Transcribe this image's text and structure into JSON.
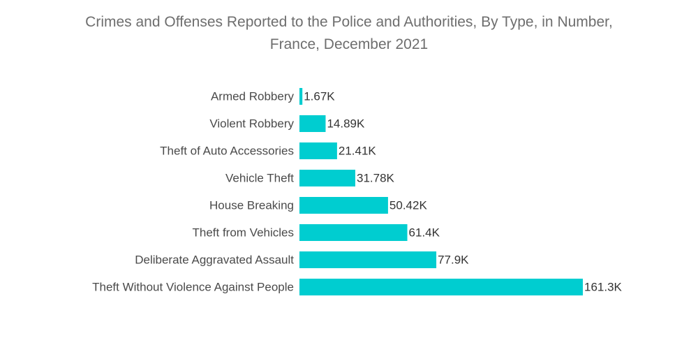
{
  "chart_data": {
    "type": "bar",
    "orientation": "horizontal",
    "title_lines": [
      "Crimes and Offenses Reported to the Police and Authorities, By Type, in Number,",
      "France, December 2021"
    ],
    "categories": [
      "Armed Robbery",
      "Violent Robbery",
      "Theft of Auto Accessories",
      "Vehicle Theft",
      "House Breaking",
      "Theft from Vehicles",
      "Deliberate Aggravated Assault",
      "Theft Without Violence Against People"
    ],
    "values": [
      1670,
      14890,
      21410,
      31780,
      50420,
      61400,
      77900,
      161300
    ],
    "value_labels": [
      "1.67K",
      "14.89K",
      "21.41K",
      "31.78K",
      "50.42K",
      "61.4K",
      "77.9K",
      "161.3K"
    ],
    "xlim": [
      0,
      161300
    ],
    "grid": false,
    "bar_color": "#00cdd0"
  }
}
